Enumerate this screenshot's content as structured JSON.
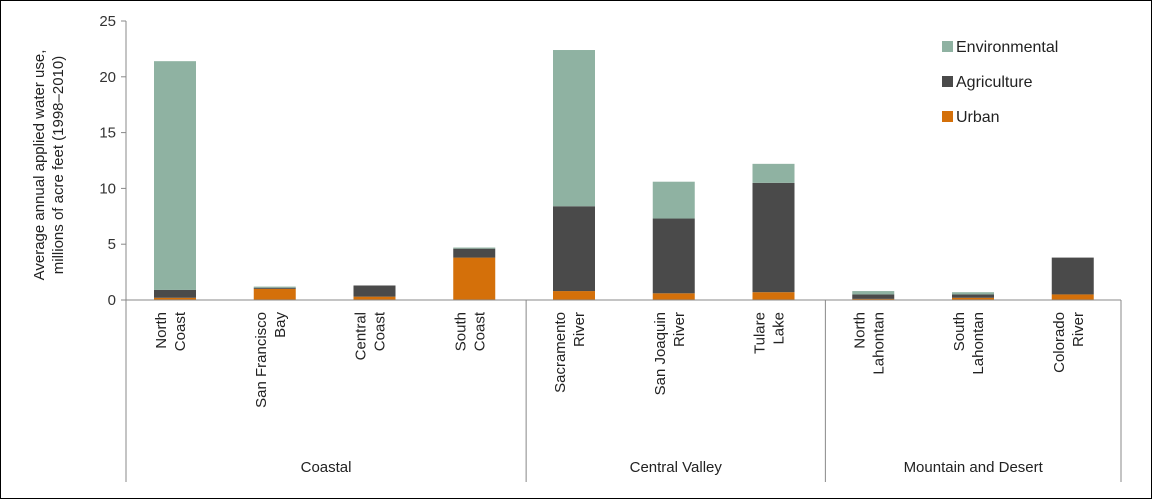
{
  "chart_data": {
    "type": "bar",
    "stacked": true,
    "ylabel_lines": [
      "Average annual applied water use,",
      "millions of acre feet (1998–2010)"
    ],
    "ylim": [
      0,
      25
    ],
    "yticks": [
      "0",
      "5",
      "10",
      "15",
      "20",
      "25"
    ],
    "categories": [
      {
        "label": [
          "North",
          "Coast"
        ]
      },
      {
        "label": [
          "San Francisco",
          "Bay"
        ]
      },
      {
        "label": [
          "Central",
          "Coast"
        ]
      },
      {
        "label": [
          "South",
          "Coast"
        ]
      },
      {
        "label": [
          "Sacramento",
          "River"
        ]
      },
      {
        "label": [
          "San Joaquin",
          "River"
        ]
      },
      {
        "label": [
          "Tulare",
          "Lake"
        ]
      },
      {
        "label": [
          "North",
          "Lahontan"
        ]
      },
      {
        "label": [
          "South",
          "Lahontan"
        ]
      },
      {
        "label": [
          "Colorado",
          "River"
        ]
      }
    ],
    "groups": [
      {
        "name": "Coastal",
        "start": 0,
        "end": 3
      },
      {
        "name": "Central Valley",
        "start": 4,
        "end": 6
      },
      {
        "name": "Mountain and Desert",
        "start": 7,
        "end": 9
      }
    ],
    "series": [
      {
        "name": "Urban",
        "color": "#d4700a",
        "values": [
          0.2,
          1.0,
          0.3,
          3.8,
          0.8,
          0.6,
          0.7,
          0.1,
          0.2,
          0.5
        ]
      },
      {
        "name": "Agriculture",
        "color": "#4a4a4a",
        "values": [
          0.7,
          0.1,
          1.0,
          0.8,
          7.6,
          6.7,
          9.8,
          0.4,
          0.3,
          3.3
        ]
      },
      {
        "name": "Environmental",
        "color": "#8fb2a2",
        "values": [
          20.5,
          0.1,
          0.0,
          0.1,
          14.0,
          3.3,
          1.7,
          0.3,
          0.2,
          0.0
        ]
      }
    ],
    "legend": {
      "position": "top-right",
      "items": [
        "Environmental",
        "Agriculture",
        "Urban"
      ]
    },
    "grid": false
  }
}
